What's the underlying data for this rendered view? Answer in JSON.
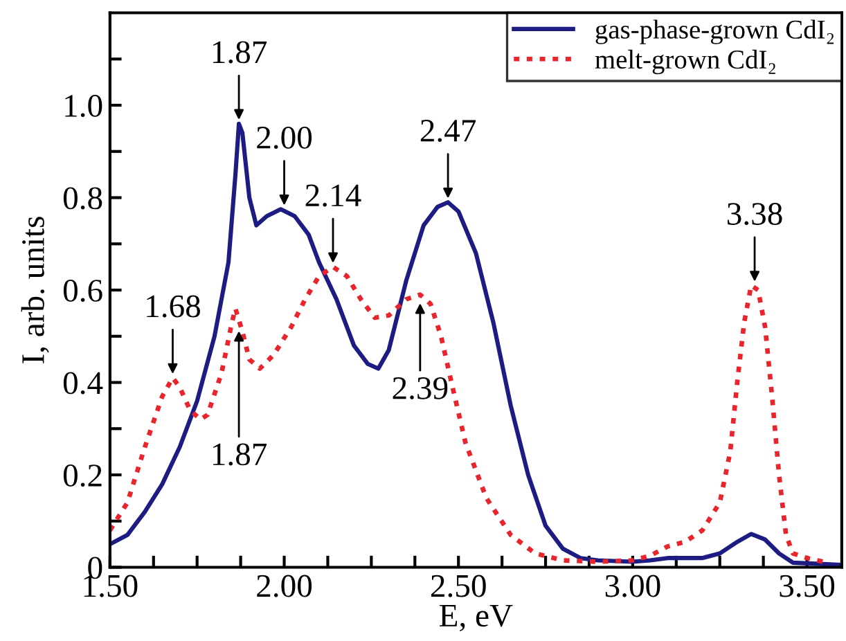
{
  "chart_data": {
    "type": "line",
    "xlabel": "E, eV",
    "ylabel": "I, arb. units",
    "xlim": [
      1.5,
      3.6
    ],
    "ylim": [
      0,
      1.2
    ],
    "xticks": [
      {
        "value": 1.5,
        "label": "1.50"
      },
      {
        "value": 1.625,
        "label": null
      },
      {
        "value": 1.75,
        "label": null
      },
      {
        "value": 1.875,
        "label": null
      },
      {
        "value": 2.0,
        "label": "2.00"
      },
      {
        "value": 2.125,
        "label": null
      },
      {
        "value": 2.25,
        "label": null
      },
      {
        "value": 2.375,
        "label": null
      },
      {
        "value": 2.5,
        "label": "2.50"
      },
      {
        "value": 2.625,
        "label": null
      },
      {
        "value": 2.75,
        "label": null
      },
      {
        "value": 2.875,
        "label": null
      },
      {
        "value": 3.0,
        "label": "3.00"
      },
      {
        "value": 3.125,
        "label": null
      },
      {
        "value": 3.25,
        "label": null
      },
      {
        "value": 3.375,
        "label": null
      },
      {
        "value": 3.5,
        "label": "3.50"
      }
    ],
    "yticks": [
      0,
      {
        "value": 0.1,
        "label": null
      },
      0.2,
      {
        "value": 0.3,
        "label": null
      },
      0.4,
      {
        "value": 0.5,
        "label": null
      },
      0.6,
      {
        "value": 0.7,
        "label": null
      },
      0.8,
      {
        "value": 0.9,
        "label": null
      },
      {
        "value": 1.0,
        "label": "1.0"
      },
      {
        "value": 1.1,
        "label": null
      }
    ],
    "grid": false,
    "legend": "top right",
    "marker": "none",
    "series": [
      {
        "name": "gas-phase-grown CdI₂",
        "color": "#1c1c82",
        "line_style": "solid",
        "x": [
          1.5,
          1.55,
          1.6,
          1.65,
          1.7,
          1.75,
          1.8,
          1.84,
          1.86,
          1.87,
          1.88,
          1.9,
          1.92,
          1.95,
          1.99,
          2.03,
          2.07,
          2.1,
          2.15,
          2.2,
          2.24,
          2.27,
          2.3,
          2.35,
          2.4,
          2.44,
          2.47,
          2.5,
          2.55,
          2.6,
          2.65,
          2.7,
          2.75,
          2.8,
          2.85,
          2.9,
          3.0,
          3.05,
          3.1,
          3.2,
          3.25,
          3.3,
          3.34,
          3.38,
          3.42,
          3.46,
          3.6
        ],
        "values": [
          0.05,
          0.07,
          0.12,
          0.18,
          0.26,
          0.36,
          0.5,
          0.66,
          0.85,
          0.96,
          0.94,
          0.8,
          0.74,
          0.76,
          0.775,
          0.76,
          0.72,
          0.66,
          0.58,
          0.48,
          0.44,
          0.43,
          0.47,
          0.62,
          0.74,
          0.78,
          0.79,
          0.77,
          0.68,
          0.53,
          0.35,
          0.2,
          0.09,
          0.04,
          0.02,
          0.015,
          0.012,
          0.015,
          0.02,
          0.02,
          0.03,
          0.055,
          0.072,
          0.06,
          0.03,
          0.01,
          0.005
        ]
      },
      {
        "name": "melt-grown CdI₂",
        "color": "#e8242c",
        "line_style": "dotted",
        "x": [
          1.5,
          1.55,
          1.6,
          1.65,
          1.68,
          1.7,
          1.73,
          1.76,
          1.78,
          1.82,
          1.85,
          1.86,
          1.88,
          1.9,
          1.93,
          1.97,
          2.02,
          2.06,
          2.1,
          2.14,
          2.18,
          2.22,
          2.26,
          2.3,
          2.35,
          2.39,
          2.42,
          2.45,
          2.48,
          2.52,
          2.58,
          2.65,
          2.72,
          2.8,
          2.9,
          3.0,
          3.05,
          3.1,
          3.15,
          3.2,
          3.25,
          3.28,
          3.3,
          3.32,
          3.34,
          3.36,
          3.38,
          3.4,
          3.42,
          3.44,
          3.46,
          3.5,
          3.56
        ],
        "values": [
          0.08,
          0.14,
          0.26,
          0.37,
          0.41,
          0.39,
          0.34,
          0.32,
          0.33,
          0.42,
          0.53,
          0.56,
          0.51,
          0.45,
          0.43,
          0.46,
          0.52,
          0.58,
          0.63,
          0.65,
          0.63,
          0.58,
          0.54,
          0.545,
          0.58,
          0.59,
          0.57,
          0.5,
          0.4,
          0.27,
          0.15,
          0.07,
          0.03,
          0.015,
          0.012,
          0.015,
          0.025,
          0.045,
          0.055,
          0.08,
          0.14,
          0.25,
          0.4,
          0.53,
          0.61,
          0.6,
          0.52,
          0.37,
          0.2,
          0.07,
          0.03,
          0.02,
          0.01
        ]
      }
    ],
    "annotations": [
      {
        "text": "1.87",
        "x": 1.87,
        "y": 0.96
      },
      {
        "text": "2.00",
        "x": 2.0,
        "y": 0.775
      },
      {
        "text": "2.14",
        "x": 2.14,
        "y": 0.65
      },
      {
        "text": "2.47",
        "x": 2.47,
        "y": 0.79
      },
      {
        "text": "3.38",
        "x": 3.35,
        "y": 0.61
      },
      {
        "text": "1.68",
        "x": 1.68,
        "y": 0.41
      },
      {
        "text": "1.87",
        "x": 1.87,
        "y": 0.52
      },
      {
        "text": "2.39",
        "x": 2.39,
        "y": 0.58
      }
    ]
  }
}
